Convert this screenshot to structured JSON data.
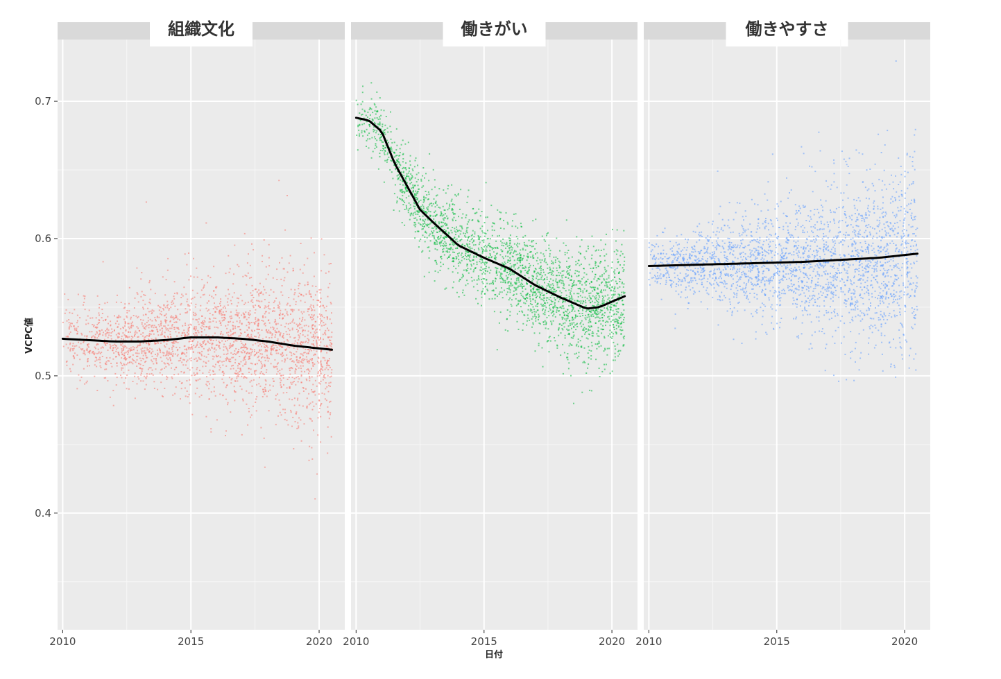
{
  "chart_data": {
    "type": "scatter",
    "layout": "facet_wrap",
    "xlabel": "日付",
    "ylabel": "VCPC値",
    "xlim": [
      2009.8,
      2021.0
    ],
    "ylim": [
      0.315,
      0.745
    ],
    "x_ticks": [
      2010,
      2015,
      2020
    ],
    "y_ticks": [
      0.4,
      0.5,
      0.6,
      0.7
    ],
    "x_tick_labels": [
      "2010",
      "2015",
      "2020"
    ],
    "y_tick_labels": [
      "0.4",
      "0.5",
      "0.6",
      "0.7"
    ],
    "grid": true,
    "legend": "none",
    "panels": [
      {
        "title": "組織文化",
        "color": "#F8766D",
        "x_range": [
          2010.0,
          2020.5
        ],
        "point_spread": {
          "start_sd": 0.012,
          "end_sd": 0.03
        },
        "smooth": [
          {
            "x": 2010.0,
            "y": 0.527
          },
          {
            "x": 2011.0,
            "y": 0.526
          },
          {
            "x": 2012.0,
            "y": 0.525
          },
          {
            "x": 2013.0,
            "y": 0.525
          },
          {
            "x": 2014.0,
            "y": 0.526
          },
          {
            "x": 2015.0,
            "y": 0.528
          },
          {
            "x": 2016.0,
            "y": 0.528
          },
          {
            "x": 2017.0,
            "y": 0.527
          },
          {
            "x": 2018.0,
            "y": 0.525
          },
          {
            "x": 2019.0,
            "y": 0.522
          },
          {
            "x": 2020.5,
            "y": 0.519
          }
        ]
      },
      {
        "title": "働きがい",
        "color": "#00BA38",
        "x_range": [
          2010.0,
          2020.5
        ],
        "point_spread": {
          "start_sd": 0.011,
          "end_sd": 0.022
        },
        "smooth": [
          {
            "x": 2010.0,
            "y": 0.688
          },
          {
            "x": 2010.5,
            "y": 0.686
          },
          {
            "x": 2011.0,
            "y": 0.678
          },
          {
            "x": 2011.5,
            "y": 0.655
          },
          {
            "x": 2012.0,
            "y": 0.638
          },
          {
            "x": 2012.5,
            "y": 0.621
          },
          {
            "x": 2013.0,
            "y": 0.612
          },
          {
            "x": 2014.0,
            "y": 0.595
          },
          {
            "x": 2015.0,
            "y": 0.586
          },
          {
            "x": 2016.0,
            "y": 0.578
          },
          {
            "x": 2017.0,
            "y": 0.566
          },
          {
            "x": 2018.0,
            "y": 0.557
          },
          {
            "x": 2019.0,
            "y": 0.549
          },
          {
            "x": 2019.5,
            "y": 0.55
          },
          {
            "x": 2020.5,
            "y": 0.558
          }
        ]
      },
      {
        "title": "働きやすさ",
        "color": "#619CFF",
        "x_range": [
          2010.0,
          2020.5
        ],
        "point_spread": {
          "start_sd": 0.008,
          "end_sd": 0.036
        },
        "smooth": [
          {
            "x": 2010.0,
            "y": 0.58
          },
          {
            "x": 2012.0,
            "y": 0.581
          },
          {
            "x": 2014.0,
            "y": 0.582
          },
          {
            "x": 2016.0,
            "y": 0.583
          },
          {
            "x": 2018.0,
            "y": 0.585
          },
          {
            "x": 2019.0,
            "y": 0.586
          },
          {
            "x": 2020.5,
            "y": 0.589
          }
        ]
      }
    ]
  }
}
